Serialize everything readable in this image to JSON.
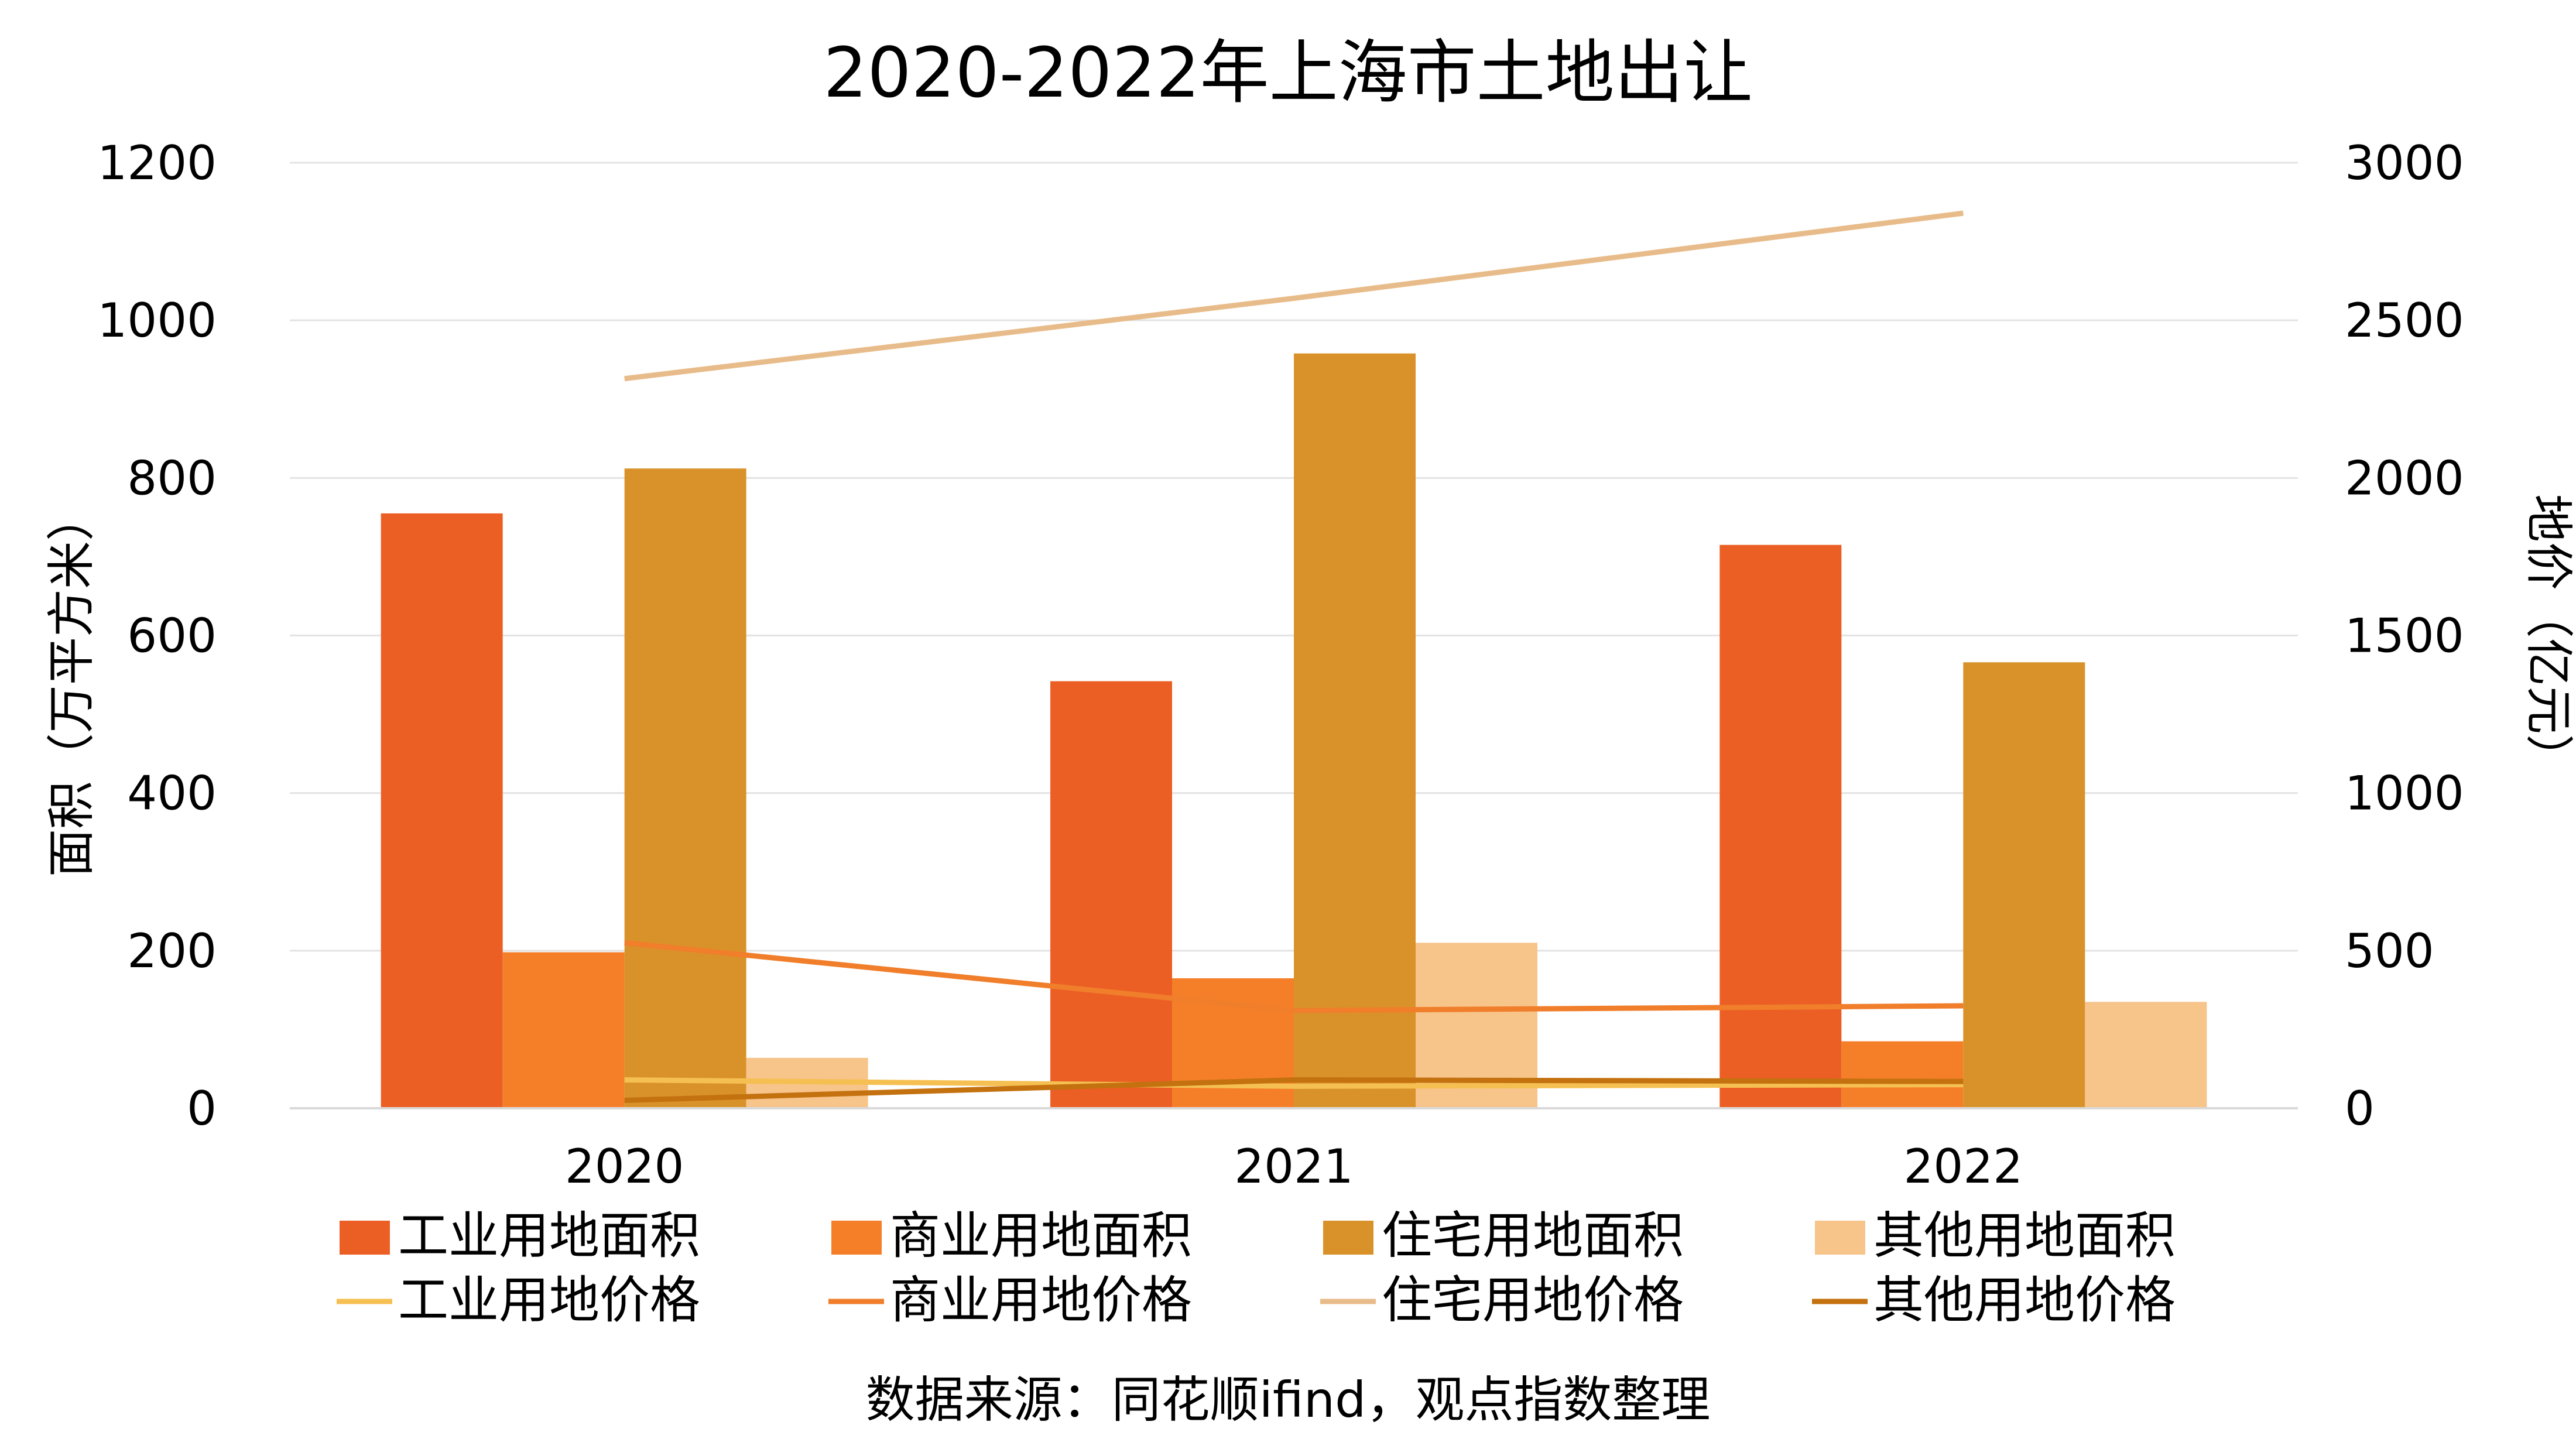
{
  "chart_data": {
    "type": "bar",
    "title": "2020-2022年上海市土地出让",
    "categories": [
      "2020",
      "2021",
      "2022"
    ],
    "y_left": {
      "label": "面积（万平方米）",
      "min": 0,
      "max": 1200,
      "ticks": [
        "0",
        "200",
        "400",
        "600",
        "800",
        "1000",
        "1200"
      ]
    },
    "y_right": {
      "label": "地价（亿元）",
      "min": 0,
      "max": 3000,
      "ticks": [
        "0",
        "500",
        "1000",
        "1500",
        "2000",
        "2500",
        "3000"
      ]
    },
    "grid": true,
    "legend_position": "bottom",
    "bar_series": [
      {
        "name": "工业用地面积",
        "color": "#EB5F24",
        "values": [
          755,
          542,
          715
        ]
      },
      {
        "name": "商业用地面积",
        "color": "#F57F29",
        "values": [
          198,
          165,
          85
        ]
      },
      {
        "name": "住宅用地面积",
        "color": "#D99229",
        "values": [
          812,
          958,
          566
        ]
      },
      {
        "name": "其他用地面积",
        "color": "#F7C48A",
        "values": [
          64,
          210,
          135
        ]
      }
    ],
    "line_series": [
      {
        "name": "工业用地价格",
        "color": "#F5C051",
        "axis": "right",
        "values": [
          90,
          70,
          75
        ]
      },
      {
        "name": "商业用地价格",
        "color": "#F07E2B",
        "axis": "right",
        "values": [
          525,
          310,
          325
        ]
      },
      {
        "name": "住宅用地价格",
        "color": "#E8BC8A",
        "axis": "right",
        "values": [
          2315,
          2570,
          2840
        ]
      },
      {
        "name": "其他用地价格",
        "color": "#C4710F",
        "axis": "right",
        "values": [
          25,
          90,
          85
        ]
      }
    ],
    "source_note": "数据来源：同花顺ifind，观点指数整理"
  }
}
